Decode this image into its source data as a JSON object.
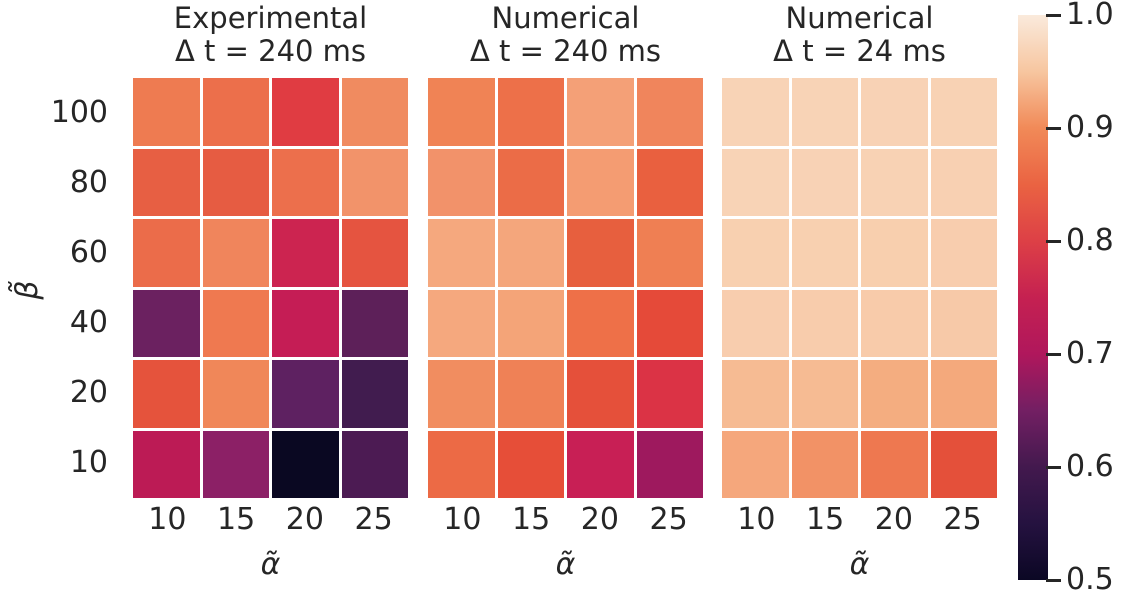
{
  "figure": {
    "background": "#ffffff",
    "text_color": "#262626",
    "grid_line_color": "#ffffff"
  },
  "chart_data": {
    "type": "heatmap",
    "colormap": "rocket",
    "vmin": 0.5,
    "vmax": 1.0,
    "x": [
      10,
      15,
      20,
      25
    ],
    "y": [
      100,
      80,
      60,
      40,
      20,
      10
    ],
    "xlabel": "α̃",
    "ylabel": "β̃",
    "x_tick_labels": [
      "10",
      "15",
      "20",
      "25"
    ],
    "y_tick_labels": [
      "100",
      "80",
      "60",
      "40",
      "20",
      "10"
    ],
    "legend_position": "right-colorbar",
    "grid": false,
    "panels": [
      {
        "title_line1": "Experimental",
        "title_line2": "Δ t = 240 ms",
        "values": [
          [
            0.88,
            0.87,
            0.8,
            0.89
          ],
          [
            0.85,
            0.84,
            0.87,
            0.9
          ],
          [
            0.86,
            0.89,
            0.77,
            0.83
          ],
          [
            0.64,
            0.88,
            0.75,
            0.62
          ],
          [
            0.83,
            0.89,
            0.63,
            0.59
          ],
          [
            0.72,
            0.67,
            0.5,
            0.61
          ]
        ],
        "colors": [
          [
            "#ee7b51",
            "#ec6f4b",
            "#e03c42",
            "#f08b60"
          ],
          [
            "#e75f43",
            "#e65c42",
            "#ec6f4c",
            "#f2936a"
          ],
          [
            "#eb6c4a",
            "#f0855c",
            "#cc2450",
            "#e55440"
          ],
          [
            "#6b2160",
            "#ef7950",
            "#c51d55",
            "#5d2059"
          ],
          [
            "#e5533c",
            "#f08759",
            "#5e2161",
            "#411c4f"
          ],
          [
            "#bc1b55",
            "#8c2066",
            "#0a0822",
            "#4c1b53"
          ]
        ]
      },
      {
        "title_line1": "Numerical",
        "title_line2": "Δ t = 240 ms",
        "values": [
          [
            0.89,
            0.87,
            0.92,
            0.89
          ],
          [
            0.9,
            0.86,
            0.91,
            0.85
          ],
          [
            0.93,
            0.92,
            0.84,
            0.88
          ],
          [
            0.93,
            0.92,
            0.87,
            0.82
          ],
          [
            0.9,
            0.88,
            0.82,
            0.79
          ],
          [
            0.86,
            0.82,
            0.76,
            0.69
          ]
        ],
        "colors": [
          [
            "#f08355",
            "#ed7049",
            "#f4a077",
            "#f0855c"
          ],
          [
            "#f2926a",
            "#eb6c47",
            "#f49c72",
            "#e9603f"
          ],
          [
            "#f5a87e",
            "#f4a67c",
            "#e75f3e",
            "#ef7f53"
          ],
          [
            "#f5a87e",
            "#f4a478",
            "#ee7048",
            "#e54a39"
          ],
          [
            "#f18d60",
            "#ef8156",
            "#e5503a",
            "#db3345"
          ],
          [
            "#ec6a45",
            "#e64e38",
            "#c81f55",
            "#9e195e"
          ]
        ]
      },
      {
        "title_line1": "Numerical",
        "title_line2": "Δ t = 24 ms",
        "values": [
          [
            0.96,
            0.96,
            0.96,
            0.96
          ],
          [
            0.96,
            0.96,
            0.96,
            0.95
          ],
          [
            0.95,
            0.95,
            0.95,
            0.95
          ],
          [
            0.95,
            0.94,
            0.94,
            0.94
          ],
          [
            0.93,
            0.93,
            0.92,
            0.92
          ],
          [
            0.92,
            0.9,
            0.88,
            0.82
          ]
        ],
        "colors": [
          [
            "#f8d3b6",
            "#f8d3b6",
            "#f8d2b5",
            "#f8d2b4"
          ],
          [
            "#f8d3b6",
            "#f8d2b5",
            "#f8d2b4",
            "#f8d0b2"
          ],
          [
            "#f8d0b0",
            "#f8d0b0",
            "#f8cfae",
            "#f8cdae"
          ],
          [
            "#f8cdae",
            "#f8ccac",
            "#f8cbaa",
            "#f7c9a8"
          ],
          [
            "#f6bb93",
            "#f6bb93",
            "#f4ad80",
            "#f4a97c"
          ],
          [
            "#f5a77c",
            "#f29266",
            "#ee7850",
            "#e4503a"
          ]
        ]
      }
    ],
    "colorbar": {
      "tick_labels": [
        "1.0",
        "0.9",
        "0.8",
        "0.7",
        "0.6",
        "0.5"
      ],
      "gradient": [
        {
          "value": 0.5,
          "color": "#0b0724"
        },
        {
          "value": 0.55,
          "color": "#251240"
        },
        {
          "value": 0.6,
          "color": "#43194e"
        },
        {
          "value": 0.65,
          "color": "#731f63"
        },
        {
          "value": 0.7,
          "color": "#b0175c"
        },
        {
          "value": 0.75,
          "color": "#c52151"
        },
        {
          "value": 0.8,
          "color": "#dd4046"
        },
        {
          "value": 0.85,
          "color": "#ea6342"
        },
        {
          "value": 0.9,
          "color": "#f18a58"
        },
        {
          "value": 0.95,
          "color": "#f7c6a0"
        },
        {
          "value": 1.0,
          "color": "#faeadc"
        }
      ]
    }
  }
}
